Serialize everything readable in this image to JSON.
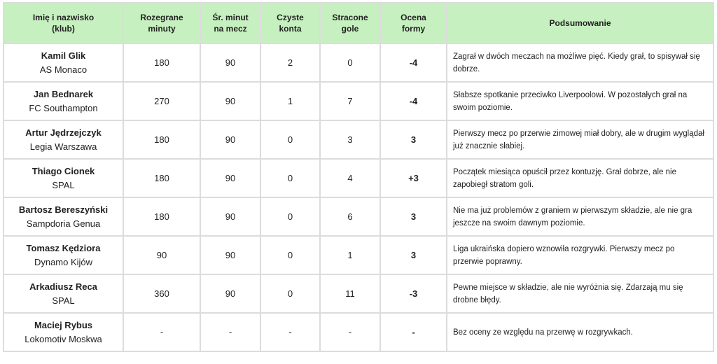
{
  "table": {
    "headers": [
      "Imię i nazwisko\n(klub)",
      "Rozegrane\nminuty",
      "Śr. minut\nna mecz",
      "Czyste\nkonta",
      "Stracone\ngole",
      "Ocena\nformy",
      "Podsumowanie"
    ],
    "rows": [
      {
        "name": "Kamil Glik",
        "club": "AS Monaco",
        "cells": [
          "180",
          "90",
          "2",
          "0",
          "-4"
        ],
        "summary": "Zagrał w dwóch meczach na możliwe pięć. Kiedy grał, to spisywał się dobrze."
      },
      {
        "name": "Jan Bednarek",
        "club": "FC Southampton",
        "cells": [
          "270",
          "90",
          "1",
          "7",
          "-4"
        ],
        "summary": "Słabsze spotkanie przeciwko Liverpoolowi. W pozostałych grał na swoim poziomie."
      },
      {
        "name": "Artur Jędrzejczyk",
        "club": "Legia Warszawa",
        "cells": [
          "180",
          "90",
          "0",
          "3",
          "3"
        ],
        "summary": "Pierwszy mecz po przerwie zimowej miał dobry, ale w drugim wyglądał już znacznie słabiej."
      },
      {
        "name": "Thiago Cionek",
        "club": "SPAL",
        "cells": [
          "180",
          "90",
          "0",
          "4",
          "+3"
        ],
        "summary": "Początek miesiąca opuścił przez kontuzję. Grał dobrze, ale nie zapobiegł stratom goli."
      },
      {
        "name": "Bartosz Bereszyński",
        "club": "Sampdoria Genua",
        "cells": [
          "180",
          "90",
          "0",
          "6",
          "3"
        ],
        "summary": "Nie ma już problemów z graniem w pierwszym składzie, ale nie gra jeszcze na swoim dawnym poziomie."
      },
      {
        "name": "Tomasz Kędziora",
        "club": "Dynamo Kijów",
        "cells": [
          "90",
          "90",
          "0",
          "1",
          "3"
        ],
        "summary": "Liga ukraińska dopiero wznowiła rozgrywki. Pierwszy mecz po przerwie poprawny."
      },
      {
        "name": "Arkadiusz Reca",
        "club": "SPAL",
        "cells": [
          "360",
          "90",
          "0",
          "11",
          "-3"
        ],
        "summary": "Pewne miejsce w składzie, ale nie wyróżnia się. Zdarzają mu się drobne błędy."
      },
      {
        "name": "Maciej Rybus",
        "club": "Lokomotiv Moskwa",
        "cells": [
          "-",
          "-",
          "-",
          "-",
          "-"
        ],
        "summary": "Bez oceny ze względu na przerwę w rozgrywkach."
      }
    ]
  }
}
